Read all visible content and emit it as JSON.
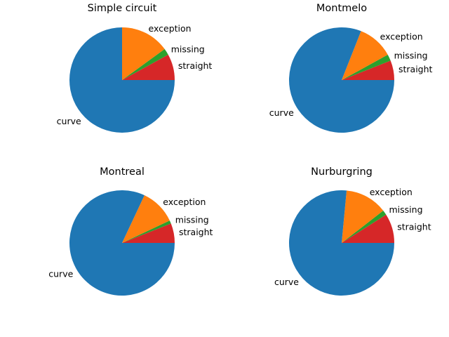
{
  "chart_data": [
    {
      "type": "pie",
      "title": "Simple circuit",
      "categories": [
        "straight",
        "missing",
        "exception",
        "curve"
      ],
      "values": [
        8,
        2,
        15,
        75
      ],
      "colors": [
        "#d62728",
        "#2ca02c",
        "#ff7f0e",
        "#1f77b4"
      ]
    },
    {
      "type": "pie",
      "title": "Montmelo",
      "categories": [
        "straight",
        "missing",
        "exception",
        "curve"
      ],
      "values": [
        6,
        2,
        11,
        81
      ],
      "colors": [
        "#d62728",
        "#2ca02c",
        "#ff7f0e",
        "#1f77b4"
      ]
    },
    {
      "type": "pie",
      "title": "Montreal",
      "categories": [
        "straight",
        "missing",
        "exception",
        "curve"
      ],
      "values": [
        6,
        1,
        11,
        82
      ],
      "colors": [
        "#d62728",
        "#2ca02c",
        "#ff7f0e",
        "#1f77b4"
      ]
    },
    {
      "type": "pie",
      "title": "Nurburgring",
      "categories": [
        "straight",
        "missing",
        "exception",
        "curve"
      ],
      "values": [
        9,
        1.5,
        13,
        76.5
      ],
      "colors": [
        "#d62728",
        "#2ca02c",
        "#ff7f0e",
        "#1f77b4"
      ]
    }
  ]
}
